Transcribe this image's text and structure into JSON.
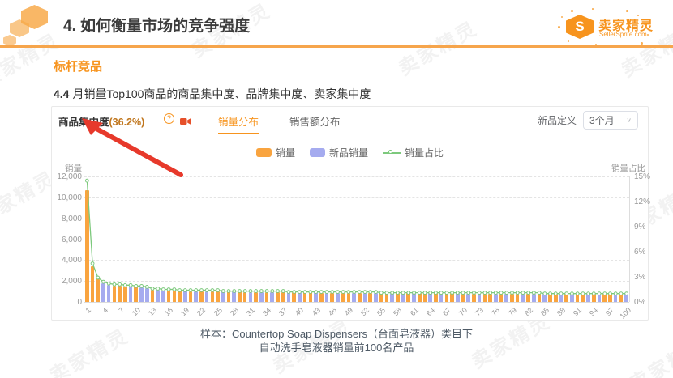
{
  "page": {
    "title": "4. 如何衡量市场的竞争强度",
    "section_label": "标杆竞品",
    "subtitle_prefix": "4.4",
    "subtitle": "月销量Top100商品的商品集中度、品牌集中度、卖家集中度",
    "caption_line1": "样本：Countertop Soap Dispensers（台面皂液器）类目下",
    "caption_line2": "自动洗手皂液器销量前100名产品",
    "watermark_text": "卖家精灵"
  },
  "logo": {
    "initial": "S",
    "brand": "卖家精灵",
    "domain": "SellerSprite.com"
  },
  "panel": {
    "metric_label": "商品集中度",
    "metric_value": "(36.2%)",
    "help_glyph": "?",
    "tabs": [
      {
        "label": "销量分布",
        "active": true
      },
      {
        "label": "销售额分布",
        "active": false
      }
    ],
    "new_product_label": "新品定义",
    "new_product_value": "3个月",
    "chevron": "∨"
  },
  "chart_data": {
    "type": "bar",
    "title": "",
    "ylabel_left": "销量",
    "ylabel_right": "销量占比",
    "ylim_left": [
      0,
      12000
    ],
    "ylim_right": [
      0,
      15
    ],
    "y_left_ticks": [
      "12,000",
      "10,000",
      "8,000",
      "6,000",
      "4,000",
      "2,000",
      "0"
    ],
    "y_right_ticks": [
      "15%",
      "12%",
      "9%",
      "6%",
      "3%",
      "0%"
    ],
    "x_range": [
      1,
      100
    ],
    "x_label_step": 3,
    "grid": "dashed-horizontal",
    "legend_position": "top-center",
    "legend": [
      {
        "label": "销量",
        "type": "bar",
        "color": "#F9A43F"
      },
      {
        "label": "新品销量",
        "type": "bar",
        "color": "#A5ABEF"
      },
      {
        "label": "销量占比",
        "type": "line",
        "color": "#7DC97D"
      }
    ],
    "series": [
      {
        "name": "销量/新品销量",
        "type": "bar",
        "values": [
          10700,
          3400,
          2150,
          1780,
          1620,
          1560,
          1520,
          1500,
          1470,
          1440,
          1400,
          1350,
          1180,
          1150,
          1120,
          1100,
          1080,
          1060,
          1050,
          1040,
          1030,
          1020,
          1010,
          1000,
          1000,
          990,
          980,
          975,
          970,
          960,
          955,
          950,
          945,
          940,
          935,
          930,
          925,
          920,
          915,
          910,
          905,
          900,
          895,
          890,
          885,
          880,
          875,
          870,
          868,
          865,
          860,
          858,
          855,
          852,
          850,
          848,
          845,
          842,
          840,
          838,
          835,
          832,
          830,
          828,
          825,
          822,
          820,
          818,
          815,
          812,
          810,
          808,
          805,
          802,
          800,
          798,
          795,
          792,
          790,
          788,
          785,
          782,
          780,
          778,
          775,
          772,
          770,
          768,
          765,
          762,
          760,
          758,
          755,
          752,
          750,
          748,
          745,
          742,
          740,
          738
        ],
        "is_new": [
          0,
          0,
          0,
          1,
          1,
          0,
          0,
          0,
          1,
          0,
          1,
          1,
          0,
          1,
          1,
          0,
          0,
          0,
          1,
          0,
          1,
          0,
          1,
          0,
          0,
          1,
          0,
          1,
          0,
          0,
          1,
          0,
          1,
          0,
          1,
          0,
          0,
          1,
          0,
          1,
          0,
          0,
          1,
          0,
          1,
          0,
          1,
          0,
          0,
          1,
          0,
          1,
          0,
          1,
          0,
          0,
          1,
          0,
          1,
          0,
          1,
          0,
          0,
          1,
          0,
          1,
          0,
          0,
          1,
          0,
          1,
          0,
          1,
          0,
          0,
          1,
          0,
          1,
          0,
          0,
          1,
          0,
          1,
          0,
          1,
          0,
          0,
          1,
          0,
          1,
          0,
          0,
          1,
          0,
          1,
          0,
          0,
          1,
          0,
          1
        ]
      },
      {
        "name": "销量占比",
        "type": "line",
        "unit": "%",
        "values": [
          14.5,
          4.6,
          2.9,
          2.4,
          2.2,
          2.1,
          2.1,
          2.0,
          2.0,
          1.9,
          1.9,
          1.8,
          1.6,
          1.6,
          1.5,
          1.5,
          1.5,
          1.4,
          1.4,
          1.4,
          1.4,
          1.4,
          1.4,
          1.4,
          1.4,
          1.3,
          1.3,
          1.3,
          1.3,
          1.3,
          1.3,
          1.3,
          1.3,
          1.3,
          1.3,
          1.3,
          1.3,
          1.2,
          1.2,
          1.2,
          1.2,
          1.2,
          1.2,
          1.2,
          1.2,
          1.2,
          1.2,
          1.2,
          1.2,
          1.2,
          1.2,
          1.2,
          1.2,
          1.2,
          1.1,
          1.1,
          1.1,
          1.1,
          1.1,
          1.1,
          1.1,
          1.1,
          1.1,
          1.1,
          1.1,
          1.1,
          1.1,
          1.1,
          1.1,
          1.1,
          1.1,
          1.1,
          1.1,
          1.1,
          1.1,
          1.1,
          1.1,
          1.1,
          1.1,
          1.1,
          1.1,
          1.1,
          1.1,
          1.1,
          1.0,
          1.0,
          1.0,
          1.0,
          1.0,
          1.0,
          1.0,
          1.0,
          1.0,
          1.0,
          1.0,
          1.0,
          1.0,
          1.0,
          1.0,
          1.0
        ]
      }
    ],
    "colors": {
      "bar": "#F9A43F",
      "bar_new": "#A5ABEF",
      "line": "#7DC97D"
    }
  },
  "annotation": {
    "arrow_color": "#E7392B"
  }
}
